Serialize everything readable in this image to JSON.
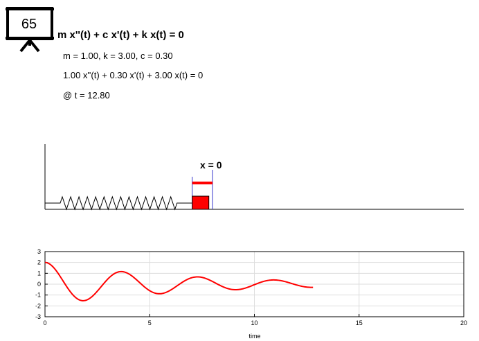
{
  "header": {
    "frame_number": "65",
    "equation": "m x''(t) + c x'(t) + k x(t) = 0",
    "params_text": "m = 1.00, k = 3.00, c = 0.30",
    "equation_numeric": "1.00 x''(t) + 0.30 x'(t) + 3.00 x(t) = 0",
    "time_text": "@ t = 12.80"
  },
  "simulation": {
    "equilibrium_label": "x = 0",
    "mass_color": "#ff0000",
    "marker_color": "#0000cc"
  },
  "params": {
    "m": 1.0,
    "k": 3.0,
    "c": 0.3,
    "x0": 2.0,
    "v0": 0.0,
    "t": 12.8
  },
  "chart_data": {
    "type": "line",
    "xlabel": "time",
    "ylabel": "",
    "xlim": [
      0,
      20
    ],
    "ylim": [
      -3,
      3
    ],
    "xticks": [
      "0",
      "5",
      "10",
      "15",
      "20"
    ],
    "yticks": [
      "3",
      "2",
      "1",
      "0",
      "-1",
      "-2",
      "-3"
    ],
    "grid": true,
    "line_color": "#ff0000",
    "series": [
      {
        "x_start": 0,
        "x_end": 12.8,
        "function": "damped oscillator solution x(t) with m=1.00, k=3.00, c=0.30, x(0)=2, x'(0)=0"
      }
    ]
  }
}
